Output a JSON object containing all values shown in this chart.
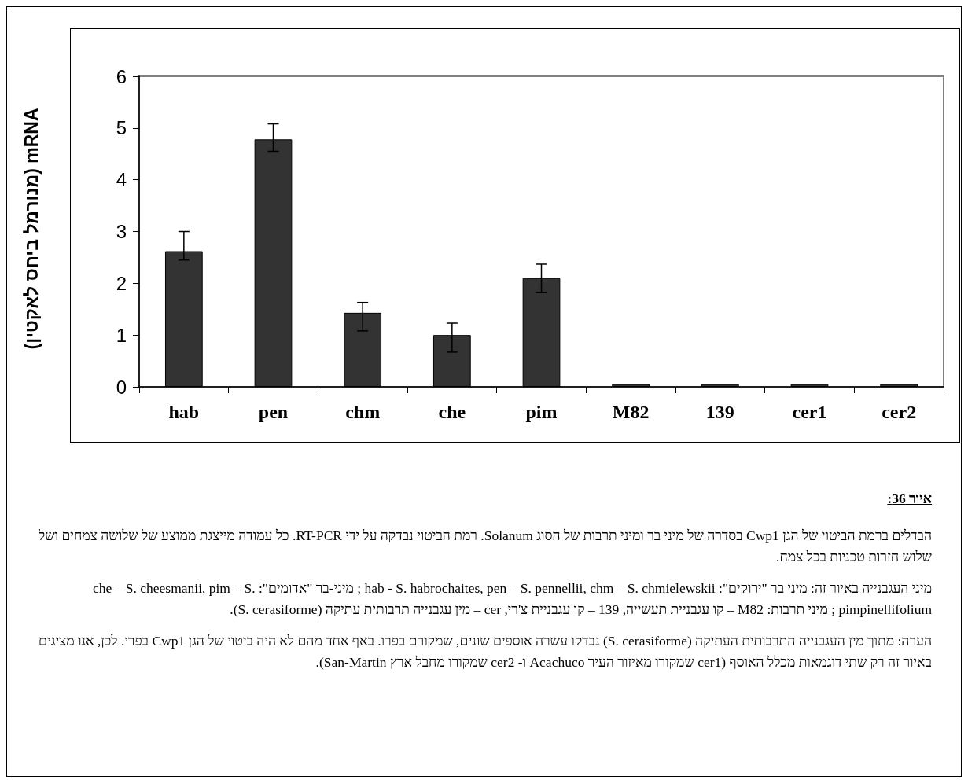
{
  "chart_data": {
    "type": "bar",
    "ylabel": "mRNA (מנורמל ביחס לאקטין)",
    "categories": [
      "hab",
      "pen",
      "chm",
      "che",
      "pim",
      "M82",
      "139",
      "cer1",
      "cer2"
    ],
    "values": [
      2.62,
      4.78,
      1.43,
      1.0,
      2.1,
      0.05,
      0.05,
      0.05,
      0.05
    ],
    "errors": [
      [
        2.45,
        3.0
      ],
      [
        4.55,
        5.08
      ],
      [
        1.08,
        1.63
      ],
      [
        0.67,
        1.23
      ],
      [
        1.82,
        2.37
      ],
      null,
      null,
      null,
      null
    ],
    "color": "#333333",
    "ylim": [
      0,
      6
    ],
    "yticks": [
      0,
      1,
      2,
      3,
      4,
      5,
      6
    ],
    "annotations": [
      "איור 36:",
      "הבדלים ברמת הביטוי של הגן Cwp1 בסדרה של מיני בר ומיני תרבות של הסוג Solanum. רמת הביטוי נבדקה על ידי RT-PCR. כל עמודה מייצגת ממוצע של שלושה צמחים ושל שלוש חזרות טכניות בכל צמח.",
      "מיני העגבנייה באיור זה: מיני בר \"ירוקים\": hab - S. habrochaites, pen – S. pennellii, chm – S. chmielewskii ; מיני-בר \"אדומים\": che – S. cheesmanii, pim – S. pimpinellifolium ; מיני תרבות: M82 – קו עגבניית תעשייה, 139 – קו עגבניית צ'רי, cer – מין עגבנייה תרבותית עתיקה (S. cerasiforme).",
      "הערה: מתוך מין העגבנייה התרבותית העתיקה (S. cerasiforme) נבדקו עשרה אוספים שונים, שמקורם בפרו. באף אחד מהם לא היה ביטוי של הגן Cwp1 בפרי. לכן, אנו מציגים באיור זה רק שתי דוגמאות מכלל האוסף (cer1 שמקורו מאיזור העיר Acachuco ו- cer2 שמקורו מחבל ארץ San-Martin)."
    ]
  }
}
